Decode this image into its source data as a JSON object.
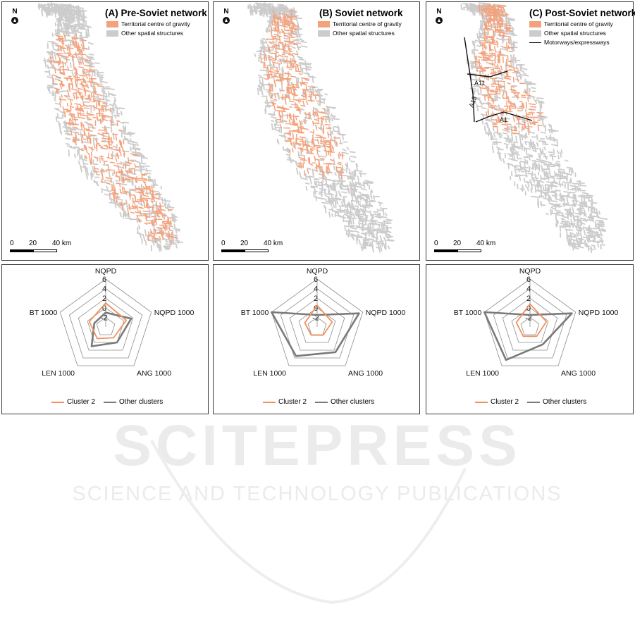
{
  "colors": {
    "centre": "#f4a27c",
    "other": "#cccccc",
    "road": "#111111",
    "cluster2": "#f0925e",
    "others_line": "#7a7a7a",
    "frame": "#3a3a3a"
  },
  "map_common": {
    "north": "N",
    "north_icon": "north-arrow-icon",
    "scale_labels": [
      "0",
      "20",
      "40 km"
    ]
  },
  "maps": [
    {
      "title": "(A) Pre-Soviet network",
      "legend": [
        "Territorial centre of gravity",
        "Other spatial structures"
      ]
    },
    {
      "title": "(B) Soviet network",
      "legend": [
        "Territorial centre of gravity",
        "Other spatial structures"
      ]
    },
    {
      "title": "(C) Post-Soviet network",
      "legend": [
        "Territorial centre of gravity",
        "Other spatial structures",
        "Motorways/expressways"
      ],
      "roads": [
        "A11",
        "A13",
        "A1"
      ]
    }
  ],
  "chart_data": [
    {
      "type": "radar",
      "axes": [
        "NQPD",
        "NQPD 1000",
        "ANG 1000",
        "LEN 1000",
        "BT 1000"
      ],
      "tick_labels": [
        "6",
        "4",
        "2",
        "0",
        "-2"
      ],
      "rlim": [
        -4,
        6
      ],
      "series": [
        {
          "name": "Cluster 2",
          "values": [
            1.0,
            0.5,
            -1.2,
            -1.0,
            -0.4
          ]
        },
        {
          "name": "Other clusters",
          "values": [
            -1.0,
            1.6,
            0.0,
            1.0,
            -1.5
          ]
        }
      ]
    },
    {
      "type": "radar",
      "axes": [
        "NQPD",
        "NQPD 1000",
        "ANG 1000",
        "LEN 1000",
        "BT 1000"
      ],
      "tick_labels": [
        "6",
        "4",
        "2",
        "0",
        "-2"
      ],
      "rlim": [
        -4,
        6
      ],
      "series": [
        {
          "name": "Cluster 2",
          "values": [
            0.5,
            -0.7,
            -1.9,
            -1.9,
            -1.3
          ]
        },
        {
          "name": "Other clusters",
          "values": [
            -1.5,
            5.2,
            2.5,
            3.5,
            6.0
          ]
        }
      ]
    },
    {
      "type": "radar",
      "axes": [
        "NQPD",
        "NQPD 1000",
        "ANG 1000",
        "LEN 1000",
        "BT 1000"
      ],
      "tick_labels": [
        "6",
        "4",
        "2",
        "0",
        "-2"
      ],
      "rlim": [
        -4,
        6
      ],
      "series": [
        {
          "name": "Cluster 2",
          "values": [
            0.8,
            -0.4,
            -1.6,
            -1.6,
            -1.0
          ]
        },
        {
          "name": "Other clusters",
          "values": [
            -1.5,
            5.2,
            0.5,
            4.5,
            6.0
          ]
        }
      ]
    }
  ],
  "watermark": {
    "word": "SCITEPRESS",
    "tagline": "SCIENCE AND TECHNOLOGY PUBLICATIONS"
  }
}
